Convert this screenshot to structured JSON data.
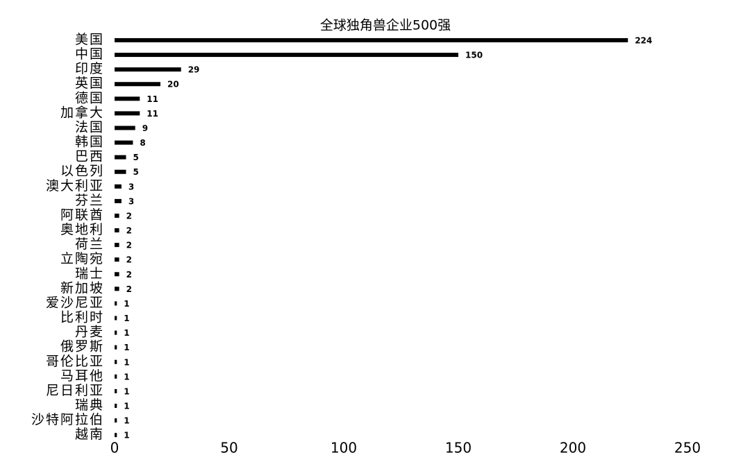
{
  "chart_data": {
    "type": "bar",
    "orientation": "horizontal",
    "title": "全球独角兽企业500强",
    "categories": [
      "美国",
      "中国",
      "印度",
      "英国",
      "德国",
      "加拿大",
      "法国",
      "韩国",
      "巴西",
      "以色列",
      "澳大利亚",
      "芬兰",
      "阿联酋",
      "奥地利",
      "荷兰",
      "立陶宛",
      "瑞士",
      "新加坡",
      "爱沙尼亚",
      "比利时",
      "丹麦",
      "俄罗斯",
      "哥伦比亚",
      "马耳他",
      "尼日利亚",
      "瑞典",
      "沙特阿拉伯",
      "越南"
    ],
    "values": [
      224,
      150,
      29,
      20,
      11,
      11,
      9,
      8,
      5,
      5,
      3,
      3,
      2,
      2,
      2,
      2,
      2,
      2,
      1,
      1,
      1,
      1,
      1,
      1,
      1,
      1,
      1,
      1
    ],
    "color": "#000000",
    "xlim": [
      0,
      250
    ],
    "xticks": [
      0,
      50,
      100,
      150,
      200,
      250
    ],
    "grid": false
  }
}
